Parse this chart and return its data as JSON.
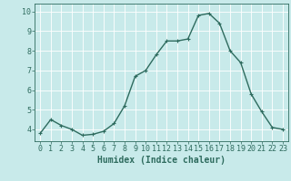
{
  "x": [
    0,
    1,
    2,
    3,
    4,
    5,
    6,
    7,
    8,
    9,
    10,
    11,
    12,
    13,
    14,
    15,
    16,
    17,
    18,
    19,
    20,
    21,
    22,
    23
  ],
  "y": [
    3.8,
    4.5,
    4.2,
    4.0,
    3.7,
    3.75,
    3.9,
    4.3,
    5.2,
    6.7,
    7.0,
    7.8,
    8.5,
    8.5,
    8.6,
    9.8,
    9.9,
    9.4,
    8.0,
    7.4,
    5.8,
    4.9,
    4.1,
    4.0
  ],
  "line_color": "#2e6b5e",
  "marker": "+",
  "marker_size": 3,
  "linewidth": 1.0,
  "bg_color": "#c8eaea",
  "grid_color": "#ffffff",
  "xlabel": "Humidex (Indice chaleur)",
  "xlabel_fontsize": 7,
  "xtick_labels": [
    "0",
    "1",
    "2",
    "3",
    "4",
    "5",
    "6",
    "7",
    "8",
    "9",
    "10",
    "11",
    "12",
    "13",
    "14",
    "15",
    "16",
    "17",
    "18",
    "19",
    "20",
    "21",
    "22",
    "23"
  ],
  "yticks": [
    4,
    5,
    6,
    7,
    8,
    9,
    10
  ],
  "ytick_labels": [
    "4",
    "5",
    "6",
    "7",
    "8",
    "9",
    "10"
  ],
  "ylim": [
    3.4,
    10.4
  ],
  "xlim": [
    -0.5,
    23.5
  ],
  "tick_fontsize": 6,
  "tick_color": "#2e6b5e",
  "axis_color": "#2e6b5e",
  "markeredgewidth": 0.8
}
